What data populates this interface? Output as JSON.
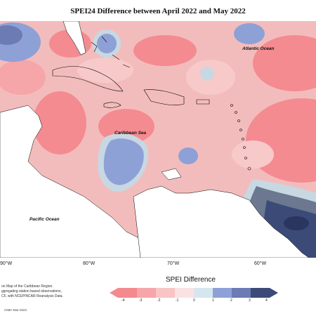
{
  "title": "SPEI24 Difference between April 2022 and May 2022",
  "labels": {
    "atlantic": "Atlantic Ocean",
    "caribbean": "Caribbean Sea",
    "pacific": "Pacific Ocean"
  },
  "longitude_ticks": [
    "90°W",
    "80°W",
    "70°W",
    "60°W"
  ],
  "notes": [
    "on Map of the Caribbean Region.",
    "ggregating station based observations,",
    "CF, with NCEP/NCAR Reanalysis Data."
  ],
  "credit": "CIMH Mar-2023",
  "legend": {
    "title": "SPEI Difference",
    "ticks": [
      "-4",
      "-3",
      "-2",
      "-1",
      "0",
      "1",
      "2",
      "3",
      "4"
    ],
    "colors": [
      "#f38a8e",
      "#f6a5a8",
      "#f8c4c4",
      "#fbe2e2",
      "#ffffff",
      "#d6e6ef",
      "#8ea1d6",
      "#6c7bb3",
      "#3c4a78"
    ]
  },
  "colors": {
    "land": "#ffffff",
    "dry_strong": "#f48b90",
    "dry": "#f6a5a8",
    "dry_light": "#f8c9c9",
    "neutral": "#fbe8e8",
    "wet_light": "#c7d8e3",
    "wet": "#8ea1d6",
    "wet_strong": "#6c7bb3",
    "wet_dark": "#3c4a78",
    "grey_wet": "#6c7890"
  }
}
